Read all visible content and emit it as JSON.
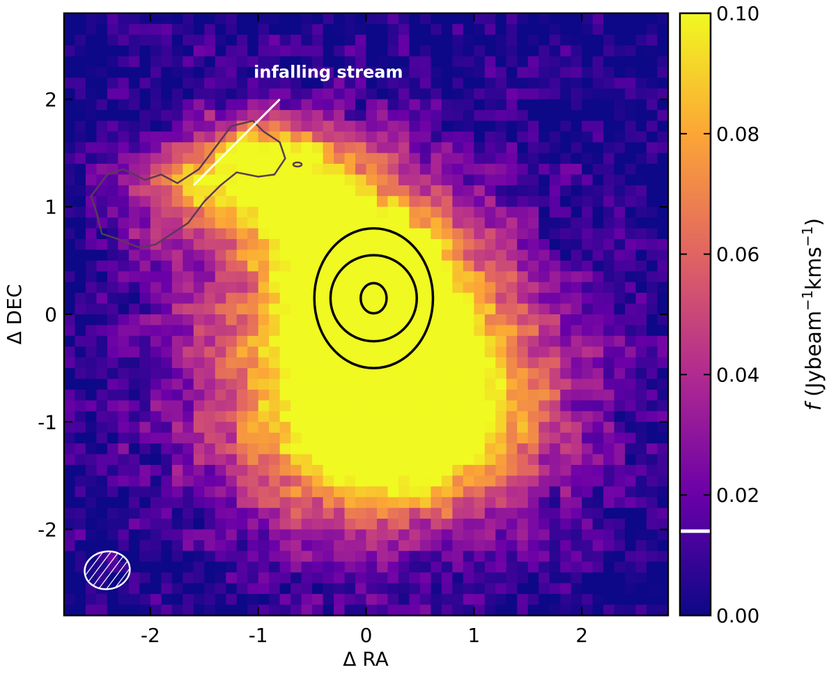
{
  "chart_data": {
    "type": "heatmap",
    "xlabel": "Δ RA",
    "ylabel": "Δ DEC",
    "xlim": [
      -2.8,
      2.8
    ],
    "ylim": [
      -2.8,
      2.8
    ],
    "x_ticks": [
      -2,
      -1,
      0,
      1,
      2
    ],
    "y_ticks": [
      -2,
      -1,
      0,
      1,
      2
    ],
    "x_tick_labels": [
      "-2",
      "-1",
      "0",
      "1",
      "2"
    ],
    "y_tick_labels": [
      "-2",
      "-1",
      "0",
      "1",
      "2"
    ],
    "grid": false,
    "colormap": "plasma",
    "colors": {
      "low": "#0d0887",
      "mid_low": "#6a00a8",
      "mid": "#b12a90",
      "mid_high": "#e16462",
      "high": "#fca636",
      "top": "#f0f921"
    },
    "colorbar": {
      "range": [
        0.0,
        0.1
      ],
      "ticks": [
        0.0,
        0.02,
        0.04,
        0.06,
        0.08,
        0.1
      ],
      "tick_labels": [
        "0.00",
        "0.02",
        "0.04",
        "0.06",
        "0.08",
        "0.10"
      ],
      "label_italic": "f",
      "label_rest": " (Jybeam",
      "label_sup1": "−1",
      "label_mid": "kms",
      "label_sup2": "−1",
      "label_end": ")",
      "marker_value": 0.014
    },
    "emission_components": [
      {
        "x": 0.05,
        "y": 0.15,
        "peak": 0.115,
        "sx": 0.55,
        "sy": 0.55
      },
      {
        "x": -0.1,
        "y": -0.3,
        "peak": 0.07,
        "sx": 1.2,
        "sy": 1.15
      },
      {
        "x": 0.15,
        "y": -1.1,
        "peak": 0.06,
        "sx": 0.8,
        "sy": 0.55
      },
      {
        "x": -1.4,
        "y": 1.2,
        "peak": 0.065,
        "sx": 0.55,
        "sy": 0.35
      },
      {
        "x": -0.8,
        "y": 1.5,
        "peak": 0.06,
        "sx": 0.45,
        "sy": 0.25
      },
      {
        "x": 0.6,
        "y": -0.8,
        "peak": 0.05,
        "sx": 0.9,
        "sy": 0.7
      },
      {
        "x": -0.4,
        "y": 0.9,
        "peak": 0.05,
        "sx": 0.5,
        "sy": 0.4
      }
    ],
    "contours_center": {
      "x": 0.07,
      "y": 0.15,
      "radii_x": [
        0.12,
        0.4,
        0.55
      ],
      "radii_y": [
        0.14,
        0.4,
        0.65
      ]
    },
    "stream_contour": [
      [
        -2.4,
        1.3
      ],
      [
        -2.25,
        1.35
      ],
      [
        -2.05,
        1.25
      ],
      [
        -1.9,
        1.3
      ],
      [
        -1.75,
        1.22
      ],
      [
        -1.55,
        1.35
      ],
      [
        -1.4,
        1.55
      ],
      [
        -1.25,
        1.75
      ],
      [
        -1.05,
        1.8
      ],
      [
        -0.95,
        1.7
      ],
      [
        -0.8,
        1.6
      ],
      [
        -0.75,
        1.45
      ],
      [
        -0.85,
        1.3
      ],
      [
        -1.0,
        1.28
      ],
      [
        -1.2,
        1.32
      ],
      [
        -1.35,
        1.2
      ],
      [
        -1.5,
        1.05
      ],
      [
        -1.65,
        0.85
      ],
      [
        -1.8,
        0.75
      ],
      [
        -1.95,
        0.65
      ],
      [
        -2.1,
        0.62
      ],
      [
        -2.3,
        0.7
      ],
      [
        -2.45,
        0.75
      ],
      [
        -2.5,
        0.95
      ],
      [
        -2.55,
        1.1
      ],
      [
        -2.4,
        1.3
      ]
    ],
    "annotations": [
      {
        "text": "infalling stream",
        "x": -0.35,
        "y": 2.2,
        "arrow_from": [
          -0.8,
          2.0
        ],
        "arrow_to": [
          -1.6,
          1.2
        ]
      }
    ],
    "beam": {
      "x": -2.4,
      "y": -2.38,
      "width": 0.42,
      "height": 0.35
    }
  }
}
